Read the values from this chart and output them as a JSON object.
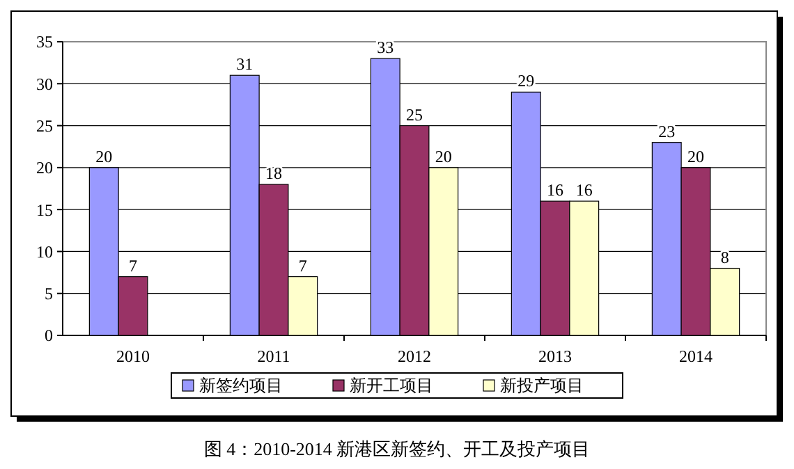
{
  "chart_data": {
    "type": "bar",
    "title": "图 4：2010-2014 新港区新签约、开工及投产项目",
    "categories": [
      "2010",
      "2011",
      "2012",
      "2013",
      "2014"
    ],
    "series": [
      {
        "name": "新签约项目",
        "color": "#9999ff",
        "values": [
          20,
          31,
          33,
          29,
          23
        ]
      },
      {
        "name": "新开工项目",
        "color": "#993366",
        "values": [
          7,
          18,
          25,
          16,
          20
        ]
      },
      {
        "name": "新投产项目",
        "color": "#ffffcc",
        "values": [
          null,
          7,
          20,
          16,
          8
        ]
      }
    ],
    "ylim": [
      0,
      35
    ],
    "yticks": [
      0,
      5,
      10,
      15,
      20,
      25,
      30,
      35
    ],
    "grid": "y",
    "legend": "bottom",
    "data_labels": true
  }
}
